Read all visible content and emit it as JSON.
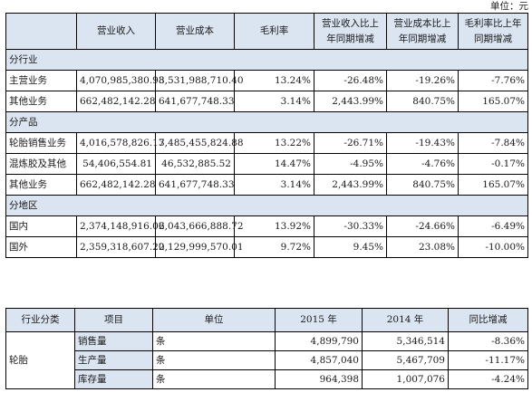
{
  "unit_label": "单位：元",
  "table1": {
    "headers": [
      "",
      "营业收入",
      "营业成本",
      "毛利率",
      "营业收入比上年同期增减",
      "营业成本比上年同期增减",
      "毛利率比上年同期增减"
    ],
    "sections": [
      {
        "title": "分行业",
        "rows": [
          [
            "主营业务",
            "4,070,985,380.98",
            "3,531,988,710.40",
            "13.24%",
            "-26.48%",
            "-19.26%",
            "-7.76%"
          ],
          [
            "其他业务",
            "662,482,142.28",
            "641,677,748.33",
            "3.14%",
            "2,443.99%",
            "840.75%",
            "165.07%"
          ]
        ]
      },
      {
        "title": "分产品",
        "rows": [
          [
            "轮胎销售业务",
            "4,016,578,826.17",
            "3,485,455,824.88",
            "13.22%",
            "-26.71%",
            "-19.43%",
            "-7.84%"
          ],
          [
            "混炼胶及其他",
            "54,406,554.81",
            "46,532,885.52",
            "14.47%",
            "-4.95%",
            "-4.76%",
            "-0.17%"
          ],
          [
            "其他业务",
            "662,482,142.28",
            "641,677,748.33",
            "3.14%",
            "2,443.99%",
            "840.75%",
            "165.07%"
          ]
        ]
      },
      {
        "title": "分地区",
        "rows": [
          [
            "国内",
            "2,374,148,916.06",
            "2,043,666,888.72",
            "13.92%",
            "-30.33%",
            "-24.66%",
            "-6.49%"
          ],
          [
            "国外",
            "2,359,318,607.20",
            "2,129,999,570.01",
            "9.72%",
            "9.45%",
            "23.08%",
            "-10.00%"
          ]
        ]
      }
    ]
  },
  "table2": {
    "headers": [
      "行业分类",
      "项目",
      "单位",
      "2015 年",
      "2014 年",
      "同比增减"
    ],
    "category": "轮胎",
    "rows": [
      [
        "销售量",
        "条",
        "4,899,790",
        "5,346,514",
        "-8.36%"
      ],
      [
        "生产量",
        "条",
        "4,857,040",
        "5,467,709",
        "-11.17%"
      ],
      [
        "库存量",
        "条",
        "964,398",
        "1,007,076",
        "-4.24%"
      ]
    ]
  }
}
